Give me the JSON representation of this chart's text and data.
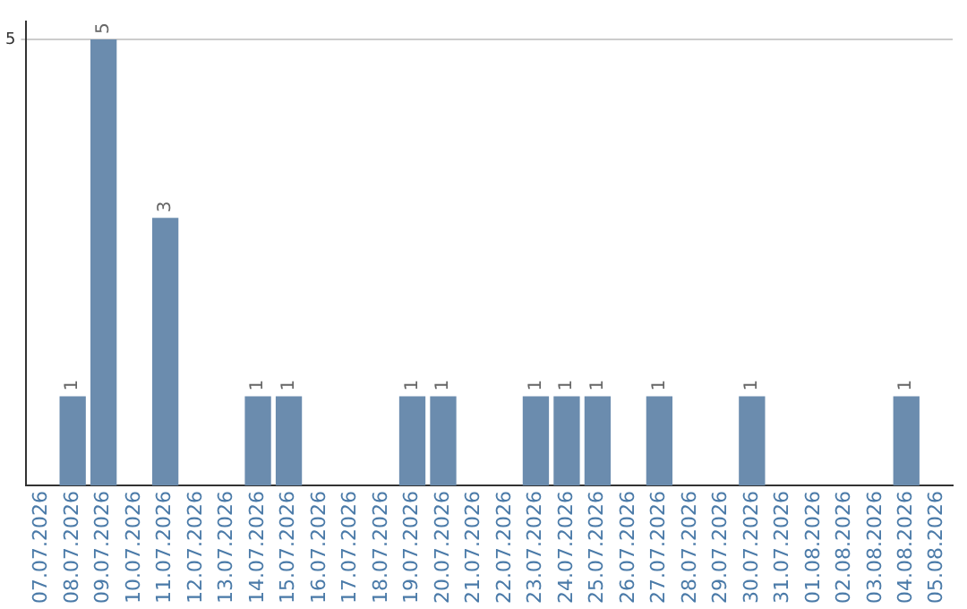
{
  "chart_data": {
    "type": "bar",
    "categories": [
      "07.07.2026",
      "08.07.2026",
      "09.07.2026",
      "10.07.2026",
      "11.07.2026",
      "12.07.2026",
      "13.07.2026",
      "14.07.2026",
      "15.07.2026",
      "16.07.2026",
      "17.07.2026",
      "18.07.2026",
      "19.07.2026",
      "20.07.2026",
      "21.07.2026",
      "22.07.2026",
      "23.07.2026",
      "24.07.2026",
      "25.07.2026",
      "26.07.2026",
      "27.07.2026",
      "28.07.2026",
      "29.07.2026",
      "30.07.2026",
      "31.07.2026",
      "01.08.2026",
      "02.08.2026",
      "03.08.2026",
      "04.08.2026",
      "05.08.2026"
    ],
    "values": [
      0,
      1,
      5,
      0,
      3,
      0,
      0,
      1,
      1,
      0,
      0,
      0,
      1,
      1,
      0,
      0,
      1,
      1,
      1,
      0,
      1,
      0,
      0,
      1,
      0,
      0,
      0,
      0,
      1,
      0
    ],
    "value_labels": [
      null,
      "1",
      "5",
      null,
      "3",
      null,
      null,
      "1",
      "1",
      null,
      null,
      null,
      "1",
      "1",
      null,
      null,
      "1",
      "1",
      "1",
      null,
      "1",
      null,
      null,
      "1",
      null,
      null,
      null,
      null,
      "1",
      null
    ],
    "color": "#6b8cae",
    "ylim": [
      0,
      5.2
    ],
    "yticks": [
      5
    ],
    "grid": "y",
    "legend": false
  }
}
